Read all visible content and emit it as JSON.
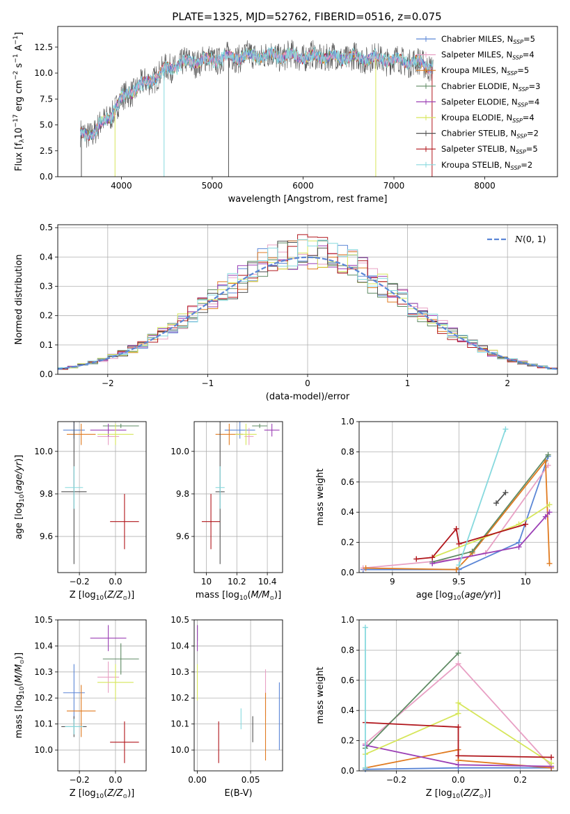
{
  "title": "PLATE=1325, MJD=52762, FIBERID=0516, z=0.075",
  "colors": {
    "chabrier_miles": "#5B86D6",
    "salpeter_miles": "#E8A0C4",
    "kroupa_miles": "#E07A1F",
    "chabrier_elodie": "#5E8A63",
    "salpeter_elodie": "#9B3FB5",
    "kroupa_elodie": "#D6E65A",
    "chabrier_stelib": "#505050",
    "salpeter_stelib": "#B0141A",
    "kroupa_stelib": "#86D9DE",
    "normal_curve": "#5B86D6"
  },
  "chart_data": [
    {
      "id": "spectrum",
      "type": "line",
      "xlabel": "wavelength [Angstrom, rest frame]",
      "ylabel": "Flux [f_λ 10^-17 erg cm^-2 s^-1 A^-1]",
      "xlim": [
        3300,
        8800
      ],
      "ylim": [
        0,
        14.5
      ],
      "xticks": [
        4000,
        5000,
        6000,
        7000,
        8000
      ],
      "yticks": [
        0.0,
        2.5,
        5.0,
        7.5,
        10.0,
        12.5
      ],
      "grid": false,
      "legend_position": "right",
      "legend": [
        "Chabrier MILES, N_SSP=5",
        "Salpeter MILES, N_SSP=4",
        "Kroupa MILES, N_SSP=5",
        "Chabrier ELODIE, N_SSP=3",
        "Salpeter ELODIE, N_SSP=4",
        "Kroupa ELODIE, N_SSP=4",
        "Chabrier STELIB, N_SSP=2",
        "Salpeter STELIB, N_SSP=5",
        "Kroupa STELIB, N_SSP=2"
      ],
      "continuum_x": [
        3550,
        3700,
        3800,
        3900,
        4000,
        4100,
        4300,
        4500,
        4700,
        5000,
        5300,
        5600,
        6000,
        6400,
        6800,
        7200,
        7430
      ],
      "continuum_y": [
        4.0,
        4.3,
        5.2,
        6.2,
        7.4,
        8.2,
        9.2,
        10.4,
        11.0,
        11.3,
        11.6,
        11.7,
        11.6,
        11.5,
        11.4,
        11.1,
        10.6
      ]
    },
    {
      "id": "residuals",
      "type": "histogram",
      "xlabel": "(data-model)/error",
      "ylabel": "Normed distribution",
      "xlim": [
        -2.5,
        2.5
      ],
      "ylim": [
        0,
        0.51
      ],
      "xticks": [
        -2,
        -1,
        0,
        1,
        2
      ],
      "xtick_labels": [
        "−2",
        "−1",
        "0",
        "1",
        "2"
      ],
      "yticks": [
        0.0,
        0.1,
        0.2,
        0.3,
        0.4,
        0.5
      ],
      "grid": true,
      "bin_width": 0.1,
      "legend": [
        "N(0,1)"
      ],
      "legend_position": "top-right"
    },
    {
      "id": "age_vs_z",
      "type": "errorbar",
      "xlabel": "Z [log10(Z/Z⊙)]",
      "ylabel": "age [log10(age/yr)]",
      "xlim": [
        -0.32,
        0.17
      ],
      "ylim": [
        9.43,
        10.14
      ],
      "xticks": [
        -0.2,
        0.0
      ],
      "xtick_labels": [
        "−0.2",
        "0.0"
      ],
      "yticks": [
        9.6,
        9.8,
        10.0
      ],
      "grid": true,
      "points": [
        {
          "x": -0.23,
          "xerr": 0.06,
          "y": 10.1,
          "yerr": 0.04,
          "c": "chabrier_miles"
        },
        {
          "x": -0.04,
          "xerr": 0.06,
          "y": 10.07,
          "yerr": 0.04,
          "c": "salpeter_miles"
        },
        {
          "x": -0.19,
          "xerr": 0.08,
          "y": 10.08,
          "yerr": 0.05,
          "c": "kroupa_miles"
        },
        {
          "x": 0.03,
          "xerr": 0.1,
          "y": 10.12,
          "yerr": 0.01,
          "c": "chabrier_elodie"
        },
        {
          "x": -0.04,
          "xerr": 0.1,
          "y": 10.1,
          "yerr": 0.03,
          "c": "salpeter_elodie"
        },
        {
          "x": 0.0,
          "xerr": 0.1,
          "y": 10.08,
          "yerr": 0.05,
          "c": "kroupa_elodie"
        },
        {
          "x": -0.23,
          "xerr": 0.07,
          "y": 9.81,
          "yerr": 0.34,
          "c": "chabrier_stelib"
        },
        {
          "x": 0.05,
          "xerr": 0.08,
          "y": 9.67,
          "yerr": 0.13,
          "c": "salpeter_stelib"
        },
        {
          "x": -0.23,
          "xerr": 0.05,
          "y": 9.83,
          "yerr": 0.1,
          "c": "kroupa_stelib"
        }
      ]
    },
    {
      "id": "age_vs_mass",
      "type": "errorbar",
      "xlabel": "mass [log10(M/M⊙)]",
      "ylabel": "",
      "xlim": [
        9.92,
        10.5
      ],
      "ylim": [
        9.43,
        10.14
      ],
      "xticks": [
        10.0,
        10.2,
        10.4
      ],
      "yticks": [
        9.6,
        9.8,
        10.0
      ],
      "grid": true,
      "points": [
        {
          "x": 10.22,
          "xerr": 0.1,
          "y": 10.1,
          "yerr": 0.04,
          "c": "chabrier_miles"
        },
        {
          "x": 10.28,
          "xerr": 0.03,
          "y": 10.07,
          "yerr": 0.04,
          "c": "salpeter_miles"
        },
        {
          "x": 10.15,
          "xerr": 0.09,
          "y": 10.08,
          "yerr": 0.05,
          "c": "kroupa_miles"
        },
        {
          "x": 10.35,
          "xerr": 0.05,
          "y": 10.12,
          "yerr": 0.01,
          "c": "chabrier_elodie"
        },
        {
          "x": 10.43,
          "xerr": 0.05,
          "y": 10.1,
          "yerr": 0.03,
          "c": "salpeter_elodie"
        },
        {
          "x": 10.26,
          "xerr": 0.07,
          "y": 10.08,
          "yerr": 0.05,
          "c": "kroupa_elodie"
        },
        {
          "x": 10.09,
          "xerr": 0.03,
          "y": 9.81,
          "yerr": 0.34,
          "c": "chabrier_stelib"
        },
        {
          "x": 10.03,
          "xerr": 0.06,
          "y": 9.67,
          "yerr": 0.13,
          "c": "salpeter_stelib"
        },
        {
          "x": 10.09,
          "xerr": 0.03,
          "y": 9.83,
          "yerr": 0.1,
          "c": "kroupa_stelib"
        }
      ]
    },
    {
      "id": "massweight_vs_age",
      "type": "line",
      "xlabel": "age [log10(age/yr)]",
      "ylabel": "mass weight",
      "xlim": [
        8.75,
        10.24
      ],
      "ylim": [
        0.0,
        1.0
      ],
      "xticks": [
        9.0,
        9.5,
        10.0
      ],
      "yticks": [
        0.0,
        0.2,
        0.4,
        0.6,
        0.8,
        1.0
      ],
      "grid": true,
      "series": [
        {
          "c": "chabrier_miles",
          "x": [
            8.78,
            9.5,
            9.95,
            10.17
          ],
          "y": [
            0.02,
            0.02,
            0.2,
            0.77
          ]
        },
        {
          "c": "salpeter_miles",
          "x": [
            8.78,
            9.5,
            9.7,
            10.17
          ],
          "y": [
            0.03,
            0.09,
            0.13,
            0.71
          ]
        },
        {
          "c": "kroupa_miles",
          "x": [
            8.8,
            9.48,
            9.6,
            10.15,
            10.18
          ],
          "y": [
            0.03,
            0.02,
            0.13,
            0.74,
            0.06
          ]
        },
        {
          "c": "chabrier_elodie",
          "x": [
            9.3,
            9.6,
            10.17
          ],
          "y": [
            0.07,
            0.14,
            0.78
          ]
        },
        {
          "c": "salpeter_elodie",
          "x": [
            9.3,
            9.95,
            10.15,
            10.18
          ],
          "y": [
            0.06,
            0.17,
            0.37,
            0.4
          ]
        },
        {
          "c": "kroupa_elodie",
          "x": [
            9.3,
            9.95,
            10.18
          ],
          "y": [
            0.1,
            0.32,
            0.45
          ]
        },
        {
          "c": "chabrier_stelib",
          "x": [
            9.78,
            9.85
          ],
          "y": [
            0.46,
            0.53
          ]
        },
        {
          "c": "salpeter_stelib",
          "x": [
            9.18,
            9.3,
            9.48,
            9.5,
            10.0
          ],
          "y": [
            0.09,
            0.1,
            0.29,
            0.19,
            0.32
          ]
        },
        {
          "c": "kroupa_stelib",
          "x": [
            9.5,
            9.85
          ],
          "y": [
            0.05,
            0.95
          ]
        }
      ]
    },
    {
      "id": "mass_vs_z",
      "type": "errorbar",
      "xlabel": "Z [log10(Z/Z⊙)]",
      "ylabel": "mass [log10(M/M⊙)]",
      "xlim": [
        -0.32,
        0.17
      ],
      "ylim": [
        9.92,
        10.5
      ],
      "xticks": [
        -0.2,
        0.0
      ],
      "xtick_labels": [
        "−0.2",
        "0.0"
      ],
      "yticks": [
        10.0,
        10.1,
        10.2,
        10.3,
        10.4,
        10.5
      ],
      "grid": true,
      "points": [
        {
          "x": -0.23,
          "xerr": 0.06,
          "y": 10.22,
          "yerr": 0.11,
          "c": "chabrier_miles"
        },
        {
          "x": -0.04,
          "xerr": 0.06,
          "y": 10.28,
          "yerr": 0.06,
          "c": "salpeter_miles"
        },
        {
          "x": -0.19,
          "xerr": 0.08,
          "y": 10.15,
          "yerr": 0.1,
          "c": "kroupa_miles"
        },
        {
          "x": 0.03,
          "xerr": 0.1,
          "y": 10.35,
          "yerr": 0.06,
          "c": "chabrier_elodie"
        },
        {
          "x": -0.04,
          "xerr": 0.1,
          "y": 10.43,
          "yerr": 0.05,
          "c": "salpeter_elodie"
        },
        {
          "x": 0.0,
          "xerr": 0.1,
          "y": 10.26,
          "yerr": 0.07,
          "c": "kroupa_elodie"
        },
        {
          "x": -0.23,
          "xerr": 0.07,
          "y": 10.09,
          "yerr": 0.04,
          "c": "chabrier_stelib"
        },
        {
          "x": 0.05,
          "xerr": 0.08,
          "y": 10.03,
          "yerr": 0.08,
          "c": "salpeter_stelib"
        },
        {
          "x": -0.23,
          "xerr": 0.05,
          "y": 10.09,
          "yerr": 0.03,
          "c": "kroupa_stelib"
        }
      ]
    },
    {
      "id": "mass_vs_ebv",
      "type": "errorbar",
      "xlabel": "E(B-V)",
      "ylabel": "",
      "xlim": [
        -0.003,
        0.08
      ],
      "ylim": [
        9.92,
        10.5
      ],
      "xticks": [
        0.0,
        0.05
      ],
      "xtick_labels": [
        "0.00",
        "0.05"
      ],
      "yticks": [
        10.0,
        10.1,
        10.2,
        10.3,
        10.4,
        10.5
      ],
      "grid": true,
      "points": [
        {
          "x": 0.077,
          "xerr": 0,
          "y": 10.13,
          "yerr": 0.13,
          "c": "chabrier_miles"
        },
        {
          "x": 0.064,
          "xerr": 0,
          "y": 10.22,
          "yerr": 0.09,
          "c": "salpeter_miles"
        },
        {
          "x": 0.064,
          "xerr": 0,
          "y": 10.09,
          "yerr": 0.13,
          "c": "kroupa_miles"
        },
        {
          "x": 0.0,
          "xerr": 0,
          "y": 10.45,
          "yerr": 0.03,
          "c": "chabrier_elodie"
        },
        {
          "x": 0.0,
          "xerr": 0,
          "y": 10.43,
          "yerr": 0.05,
          "c": "salpeter_elodie"
        },
        {
          "x": 0.0,
          "xerr": 0,
          "y": 10.26,
          "yerr": 0.07,
          "c": "kroupa_elodie"
        },
        {
          "x": 0.052,
          "xerr": 0,
          "y": 10.08,
          "yerr": 0.05,
          "c": "chabrier_stelib"
        },
        {
          "x": 0.02,
          "xerr": 0,
          "y": 10.03,
          "yerr": 0.08,
          "c": "salpeter_stelib"
        },
        {
          "x": 0.041,
          "xerr": 0,
          "y": 10.12,
          "yerr": 0.04,
          "c": "kroupa_stelib"
        }
      ]
    },
    {
      "id": "massweight_vs_z",
      "type": "line",
      "xlabel": "Z [log10(Z/Z⊙)]",
      "ylabel": "mass weight",
      "xlim": [
        -0.32,
        0.32
      ],
      "ylim": [
        0.0,
        1.0
      ],
      "xticks": [
        -0.2,
        0.0,
        0.2
      ],
      "xtick_labels": [
        "−0.2",
        "0.0",
        "0.2"
      ],
      "yticks": [
        0.0,
        0.2,
        0.4,
        0.6,
        0.8,
        1.0
      ],
      "grid": true,
      "series": [
        {
          "c": "chabrier_miles",
          "x": [
            -0.3,
            0.0,
            0.3
          ],
          "y": [
            0.01,
            0.02,
            0.02
          ]
        },
        {
          "c": "salpeter_miles",
          "x": [
            -0.3,
            0.0,
            0.3
          ],
          "y": [
            0.18,
            0.71,
            0.03
          ]
        },
        {
          "c": "kroupa_miles",
          "x": [
            -0.3,
            0.0,
            0.0,
            0.3
          ],
          "y": [
            0.02,
            0.14,
            0.07,
            0.02
          ]
        },
        {
          "c": "chabrier_elodie",
          "x": [
            -0.3,
            0.0
          ],
          "y": [
            0.15,
            0.78
          ]
        },
        {
          "c": "salpeter_elodie",
          "x": [
            -0.3,
            0.0,
            0.3
          ],
          "y": [
            0.17,
            0.04,
            0.03
          ]
        },
        {
          "c": "kroupa_elodie",
          "x": [
            -0.3,
            0.0,
            0.0,
            0.3
          ],
          "y": [
            0.11,
            0.38,
            0.45,
            0.05
          ]
        },
        {
          "c": "salpeter_stelib",
          "x": [
            -0.3,
            0.0,
            0.0,
            0.3
          ],
          "y": [
            0.32,
            0.29,
            0.1,
            0.09
          ]
        },
        {
          "c": "kroupa_stelib",
          "x": [
            -0.3,
            -0.3
          ],
          "y": [
            0.02,
            0.95
          ]
        }
      ]
    }
  ]
}
